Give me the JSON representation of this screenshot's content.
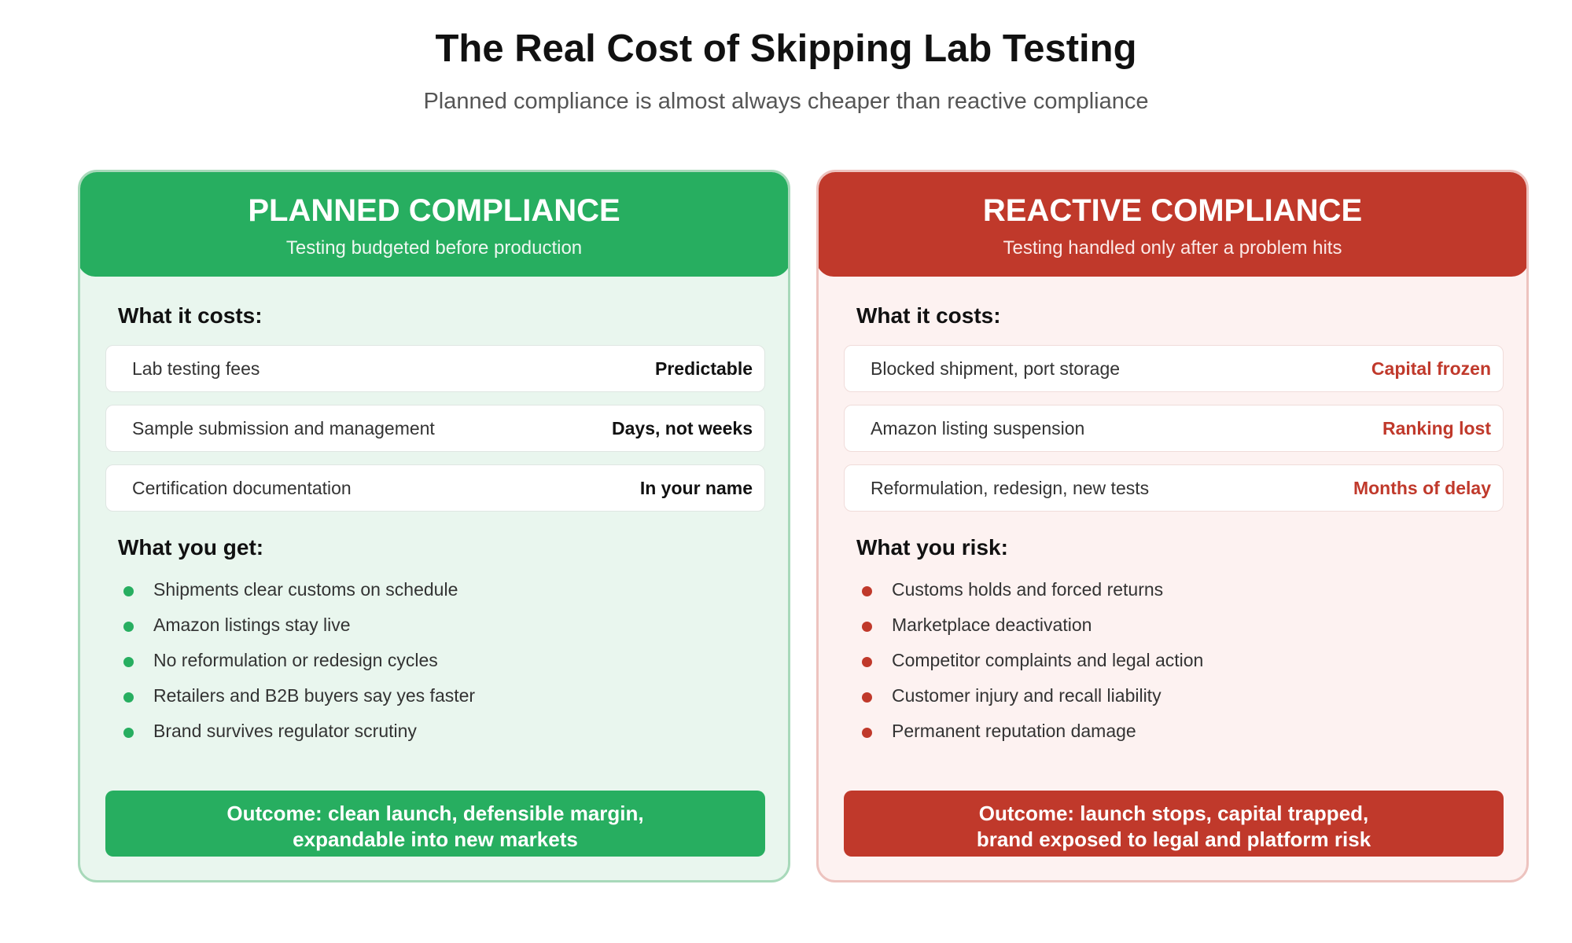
{
  "title": "The Real Cost of Skipping Lab Testing",
  "subtitle": "Planned compliance is almost always cheaper than reactive compliance",
  "planned": {
    "title": "PLANNED COMPLIANCE",
    "subtitle": "Testing budgeted before production",
    "costs_heading": "What it costs:",
    "costs": [
      {
        "label": "Lab testing fees",
        "value": "Predictable"
      },
      {
        "label": "Sample submission and management",
        "value": "Days, not weeks"
      },
      {
        "label": "Certification documentation",
        "value": "In your name"
      }
    ],
    "list_heading": "What you get:",
    "items": [
      "Shipments clear customs on schedule",
      "Amazon listings stay live",
      "No reformulation or redesign cycles",
      "Retailers and B2B buyers say yes faster",
      "Brand survives regulator scrutiny"
    ],
    "outcome_line1": "Outcome: clean launch, defensible margin,",
    "outcome_line2": "expandable into new markets",
    "color": "#27ae60"
  },
  "reactive": {
    "title": "REACTIVE COMPLIANCE",
    "subtitle": "Testing handled only after a problem hits",
    "costs_heading": "What it costs:",
    "costs": [
      {
        "label": "Blocked shipment, port storage",
        "value": "Capital frozen"
      },
      {
        "label": "Amazon listing suspension",
        "value": "Ranking lost"
      },
      {
        "label": "Reformulation, redesign, new tests",
        "value": "Months of delay"
      }
    ],
    "list_heading": "What you risk:",
    "items": [
      "Customs holds and forced returns",
      "Marketplace deactivation",
      "Competitor complaints and legal action",
      "Customer injury and recall liability",
      "Permanent reputation damage"
    ],
    "outcome_line1": "Outcome: launch stops, capital trapped,",
    "outcome_line2": "brand exposed to legal and platform risk",
    "color": "#c0392b"
  }
}
